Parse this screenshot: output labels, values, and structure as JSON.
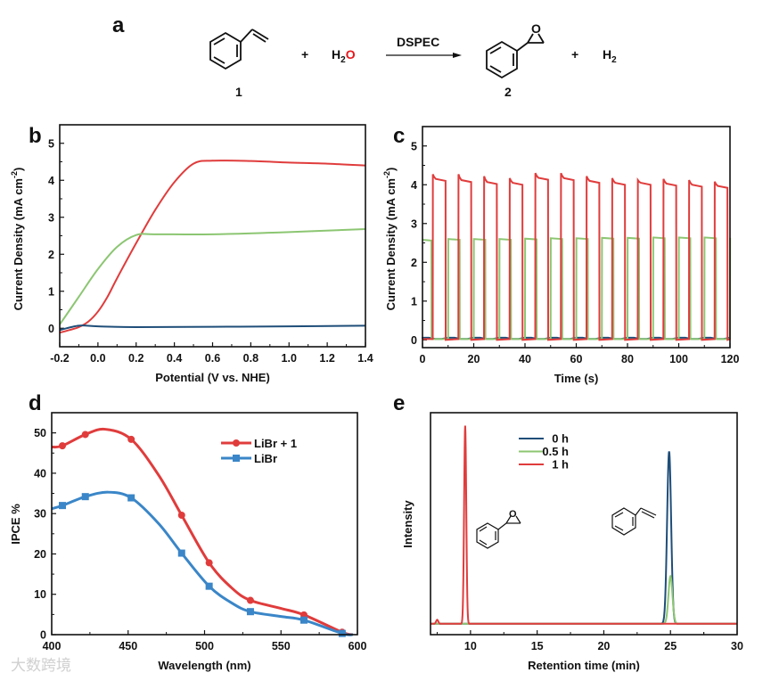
{
  "panel_labels": {
    "a": "a",
    "b": "b",
    "c": "c",
    "d": "d",
    "e": "e"
  },
  "reaction": {
    "reactant_label": "1",
    "plus1": "+",
    "water_h": "H",
    "water_sub": "2",
    "water_o": "O",
    "arrow_label": "DSPEC",
    "product_label": "2",
    "epoxide_o": "O",
    "plus2": "+",
    "h2_h": "H",
    "h2_sub": "2",
    "colors": {
      "oxygen": "#e8161b"
    }
  },
  "watermark": "大数跨境",
  "chart_data": [
    {
      "id": "b",
      "type": "line",
      "xlabel": "Potential (V vs. NHE)",
      "ylabel": "Current Density (mA cm",
      "ylabel_sup": "-2",
      "ylabel_end": ")",
      "xlim": [
        -0.2,
        1.4
      ],
      "ylim": [
        -0.5,
        5.5
      ],
      "xticks": [
        "-0.2",
        "0.0",
        "0.2",
        "0.4",
        "0.6",
        "0.8",
        "1.0",
        "1.2",
        "1.4"
      ],
      "yticks": [
        "0",
        "1",
        "2",
        "3",
        "4",
        "5"
      ],
      "series": [
        {
          "name": "red",
          "color": "#e03c3c",
          "x": [
            -0.2,
            -0.15,
            -0.1,
            -0.05,
            0,
            0.05,
            0.1,
            0.2,
            0.3,
            0.4,
            0.5,
            0.6,
            0.8,
            1.0,
            1.2,
            1.4
          ],
          "y": [
            -0.12,
            -0.05,
            0.03,
            0.18,
            0.45,
            0.85,
            1.35,
            2.3,
            3.2,
            3.95,
            4.45,
            4.53,
            4.52,
            4.48,
            4.45,
            4.4
          ]
        },
        {
          "name": "green",
          "color": "#8cc672",
          "x": [
            -0.2,
            -0.1,
            0,
            0.1,
            0.2,
            0.3,
            0.6,
            1.0,
            1.4
          ],
          "y": [
            0.1,
            0.85,
            1.6,
            2.2,
            2.52,
            2.54,
            2.54,
            2.6,
            2.68
          ]
        },
        {
          "name": "blue",
          "color": "#1f4e79",
          "x": [
            -0.2,
            -0.1,
            0,
            0.2,
            0.6,
            1.0,
            1.4
          ],
          "y": [
            -0.05,
            0.07,
            0.05,
            0.03,
            0.04,
            0.05,
            0.07
          ]
        }
      ]
    },
    {
      "id": "c",
      "type": "line",
      "xlabel": "Time (s)",
      "ylabel": "Current Density (mA cm",
      "ylabel_sup": "-2",
      "ylabel_end": ")",
      "xlim": [
        0,
        120
      ],
      "ylim": [
        -0.2,
        5.5
      ],
      "xticks": [
        "0",
        "20",
        "40",
        "60",
        "80",
        "100",
        "120"
      ],
      "yticks": [
        "0",
        "1",
        "2",
        "3",
        "4",
        "5"
      ],
      "red_pulses": {
        "color": "#e03c3c",
        "on": [
          4,
          14,
          24,
          34,
          44,
          54,
          64,
          74,
          84,
          94,
          104,
          114
        ],
        "duration": 5,
        "peak": [
          4.27,
          4.27,
          4.22,
          4.17,
          4.3,
          4.3,
          4.22,
          4.17,
          4.12,
          4.15,
          4.12,
          4.08
        ],
        "end": [
          4.1,
          4.07,
          4.02,
          4.0,
          4.13,
          4.12,
          4.05,
          4.0,
          4.0,
          3.98,
          3.95,
          3.92
        ]
      },
      "green_pulses": {
        "color": "#8cc672",
        "on": [
          0,
          10,
          20,
          30,
          40,
          50,
          60,
          70,
          80,
          90,
          100,
          110,
          120
        ],
        "duration": 4.5,
        "level": [
          2.58,
          2.6,
          2.6,
          2.6,
          2.61,
          2.62,
          2.62,
          2.63,
          2.63,
          2.64,
          2.64,
          2.64,
          2.63
        ]
      },
      "blue_level": {
        "color": "#1f4e79",
        "value": 0.04
      }
    },
    {
      "id": "d",
      "type": "line",
      "xlabel": "Wavelength (nm)",
      "ylabel": "IPCE %",
      "xlim": [
        400,
        600
      ],
      "ylim": [
        0,
        55
      ],
      "xticks": [
        "400",
        "450",
        "500",
        "550",
        "600"
      ],
      "yticks": [
        "0",
        "10",
        "20",
        "30",
        "40",
        "50"
      ],
      "legend_position": "top-right",
      "series": [
        {
          "name": "LiBr + 1",
          "color": "#e03c3c",
          "marker": "circle",
          "x": [
            407,
            422,
            452,
            485,
            503,
            530,
            565,
            590
          ],
          "y": [
            46.8,
            49.6,
            48.4,
            29.6,
            17.8,
            8.5,
            4.9,
            0.6
          ],
          "curve_x": [
            400,
            407,
            422,
            435,
            452,
            470,
            485,
            503,
            518,
            530,
            550,
            565,
            590,
            597
          ],
          "curve_y": [
            46.5,
            46.8,
            49.6,
            50.9,
            48.4,
            39.5,
            29.6,
            17.8,
            11.5,
            8.5,
            6.5,
            4.9,
            0.6,
            0
          ]
        },
        {
          "name": "LiBr",
          "color": "#3a86c8",
          "marker": "square",
          "x": [
            407,
            422,
            452,
            485,
            503,
            530,
            565,
            590
          ],
          "y": [
            32.0,
            34.2,
            33.9,
            20.2,
            12.0,
            5.7,
            3.6,
            0.3
          ],
          "curve_x": [
            400,
            407,
            422,
            437,
            452,
            470,
            485,
            503,
            518,
            530,
            550,
            565,
            590,
            597
          ],
          "curve_y": [
            31.2,
            32.0,
            34.2,
            35.3,
            33.9,
            27.5,
            20.2,
            12.0,
            7.8,
            5.7,
            4.5,
            3.6,
            0.3,
            0
          ]
        }
      ]
    },
    {
      "id": "e",
      "type": "line",
      "xlabel": "Retention time (min)",
      "ylabel": "Intensity",
      "xlim": [
        7,
        30
      ],
      "ylim": [
        -0.055,
        1.065
      ],
      "xticks": [
        "10",
        "15",
        "20",
        "25",
        "30"
      ],
      "legend_position": "top-center",
      "series": [
        {
          "name": "0 h",
          "color": "#1f4e79",
          "peaks": [
            {
              "center": 24.9,
              "height": 0.87,
              "width": 0.15
            }
          ]
        },
        {
          "name": "0.5 h",
          "color": "#8cc672",
          "peaks": [
            {
              "center": 25.0,
              "height": 0.24,
              "width": 0.15
            }
          ]
        },
        {
          "name": "1 h",
          "color": "#e03c3c",
          "peaks": [
            {
              "center": 9.6,
              "height": 1.0,
              "width": 0.08
            },
            {
              "center": 7.5,
              "height": 0.02,
              "width": 0.08
            }
          ]
        }
      ]
    }
  ]
}
